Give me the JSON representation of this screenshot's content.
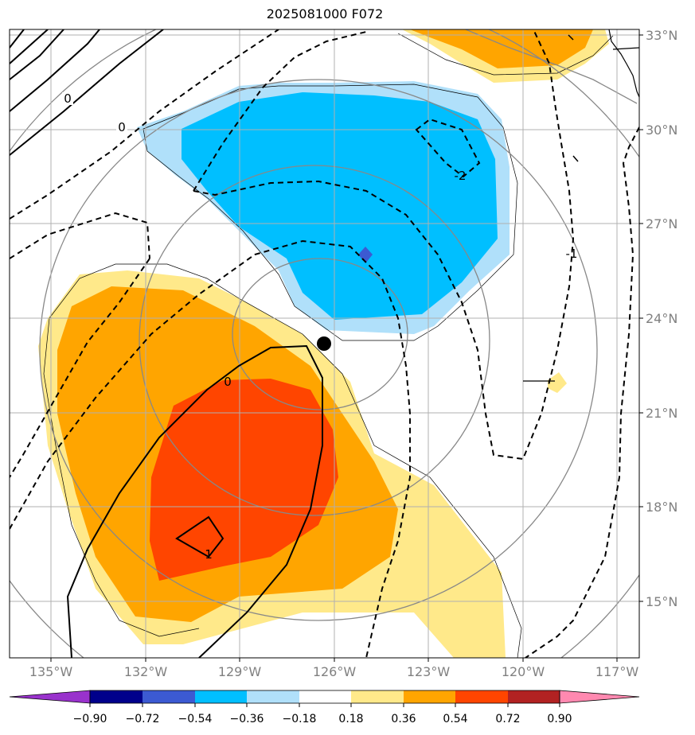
{
  "title": "2025081000 F072",
  "map": {
    "lat_labels": [
      "33°N",
      "30°N",
      "27°N",
      "24°N",
      "21°N",
      "18°N",
      "15°N"
    ],
    "lon_labels": [
      "135°W",
      "132°W",
      "129°W",
      "126°W",
      "123°W",
      "120°W",
      "117°W"
    ],
    "contour_labels": [
      "0",
      "0",
      "-2",
      "-1",
      "0",
      "1"
    ],
    "center_marker": "storm-center",
    "colors": {
      "shade_neg_strong": "#00bfff",
      "shade_neg_light": "#b0e0fa",
      "shade_pos_light": "#ffe98a",
      "shade_pos_mid": "#ffa500",
      "shade_pos_strong": "#ff4500",
      "grid": "#b0b0b0"
    }
  },
  "colorbar": {
    "ticks": [
      "−0.90",
      "−0.72",
      "−0.54",
      "−0.36",
      "−0.18",
      "0.18",
      "0.36",
      "0.54",
      "0.72",
      "0.90"
    ],
    "colors": [
      "#9932cc",
      "#00008b",
      "#3c5ad2",
      "#00bfff",
      "#b0e0fa",
      "#ffffff",
      "#ffe98a",
      "#ffa500",
      "#ff4500",
      "#b22222",
      "#ff89b0"
    ]
  }
}
